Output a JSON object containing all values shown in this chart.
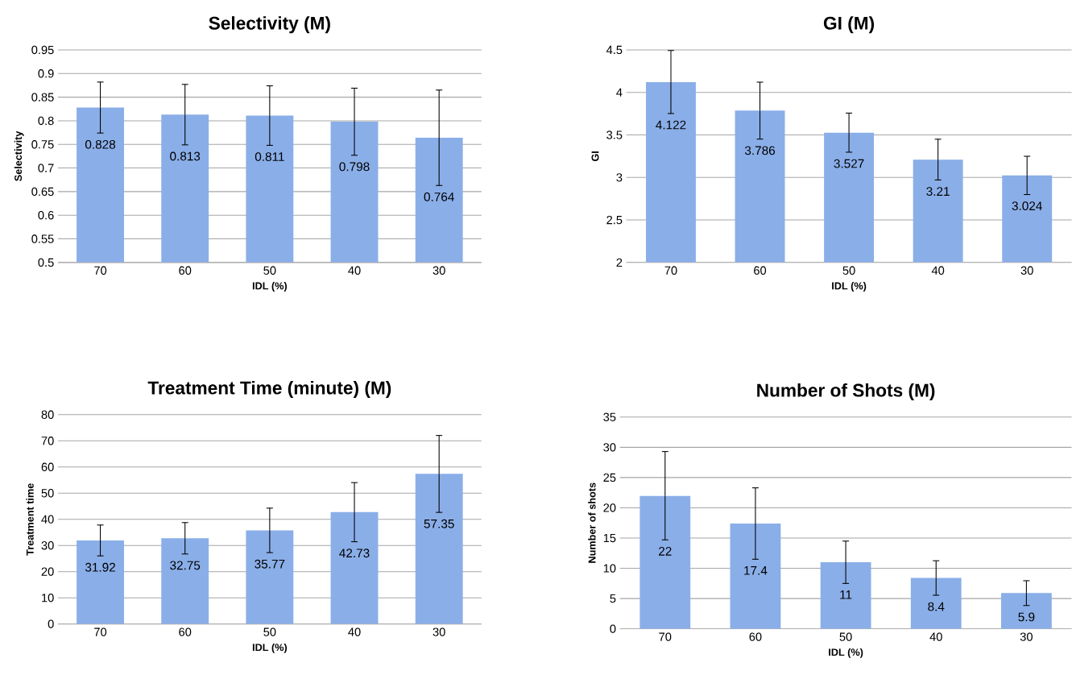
{
  "chart_data": [
    {
      "type": "bar",
      "title": "Selectivity (M)",
      "xlabel": "IDL (%)",
      "ylabel": "Selectivity",
      "categories": [
        "70",
        "60",
        "50",
        "40",
        "30"
      ],
      "values": [
        0.828,
        0.813,
        0.811,
        0.798,
        0.764
      ],
      "errors": [
        0.054,
        0.064,
        0.063,
        0.071,
        0.101
      ],
      "color": "#8aaee8",
      "ylim": [
        0.5,
        0.95
      ],
      "yticks": [
        0.5,
        0.55,
        0.6,
        0.65,
        0.7,
        0.75,
        0.8,
        0.85,
        0.9,
        0.95
      ],
      "grid": "y",
      "data_labels": true
    },
    {
      "type": "bar",
      "title": "GI (M)",
      "xlabel": "IDL (%)",
      "ylabel": "GI",
      "categories": [
        "70",
        "60",
        "50",
        "40",
        "30"
      ],
      "values": [
        4.122,
        3.786,
        3.527,
        3.21,
        3.024
      ],
      "errors": [
        0.37,
        0.335,
        0.23,
        0.24,
        0.225
      ],
      "color": "#8aaee8",
      "ylim": [
        2,
        4.5
      ],
      "yticks": [
        2,
        2.5,
        3,
        3.5,
        4,
        4.5
      ],
      "grid": "y",
      "data_labels": true
    },
    {
      "type": "bar",
      "title": "Treatment Time (minute) (M)",
      "xlabel": "IDL (%)",
      "ylabel": "Treatment time",
      "categories": [
        "70",
        "60",
        "50",
        "40",
        "30"
      ],
      "values": [
        31.92,
        32.75,
        35.77,
        42.73,
        57.35
      ],
      "errors": [
        5.9,
        6,
        8.5,
        11.3,
        14.7
      ],
      "color": "#8aaee8",
      "ylim": [
        0,
        80
      ],
      "yticks": [
        0,
        10,
        20,
        30,
        40,
        50,
        60,
        70,
        80
      ],
      "grid": "y",
      "data_labels": true
    },
    {
      "type": "bar",
      "title": "Number of Shots (M)",
      "xlabel": "IDL (%)",
      "ylabel": "Number of shots",
      "categories": [
        "70",
        "60",
        "50",
        "40",
        "30"
      ],
      "values": [
        22,
        17.4,
        11,
        8.4,
        5.9
      ],
      "errors": [
        7.3,
        5.9,
        3.5,
        2.85,
        2.05
      ],
      "color": "#8aaee8",
      "ylim": [
        0,
        35
      ],
      "yticks": [
        0,
        5,
        10,
        15,
        20,
        25,
        30,
        35
      ],
      "grid": "y",
      "data_labels": true
    }
  ]
}
